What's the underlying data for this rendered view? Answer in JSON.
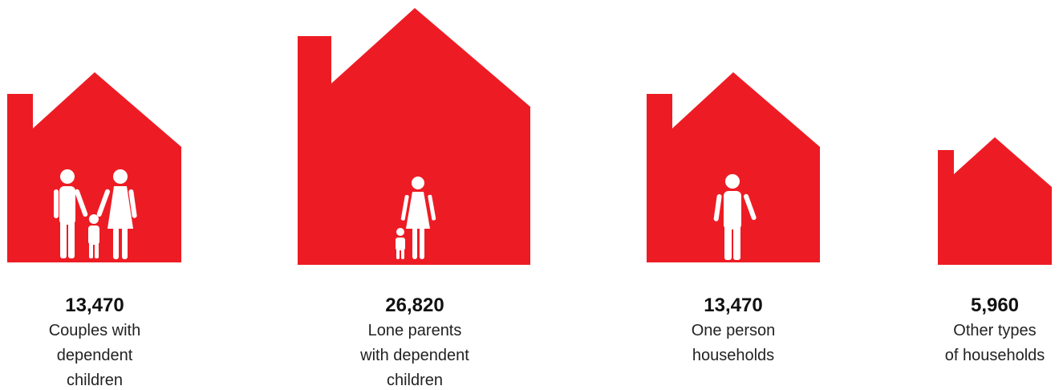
{
  "items": [
    {
      "value": "13,470",
      "label": [
        "Couples with",
        "dependent",
        "children"
      ]
    },
    {
      "value": "26,820",
      "label": [
        "Lone parents",
        "with dependent",
        "children"
      ]
    },
    {
      "value": "13,470",
      "label": [
        "One person",
        "households"
      ]
    },
    {
      "value": "5,960",
      "label": [
        "Other types",
        "of households"
      ]
    }
  ]
}
